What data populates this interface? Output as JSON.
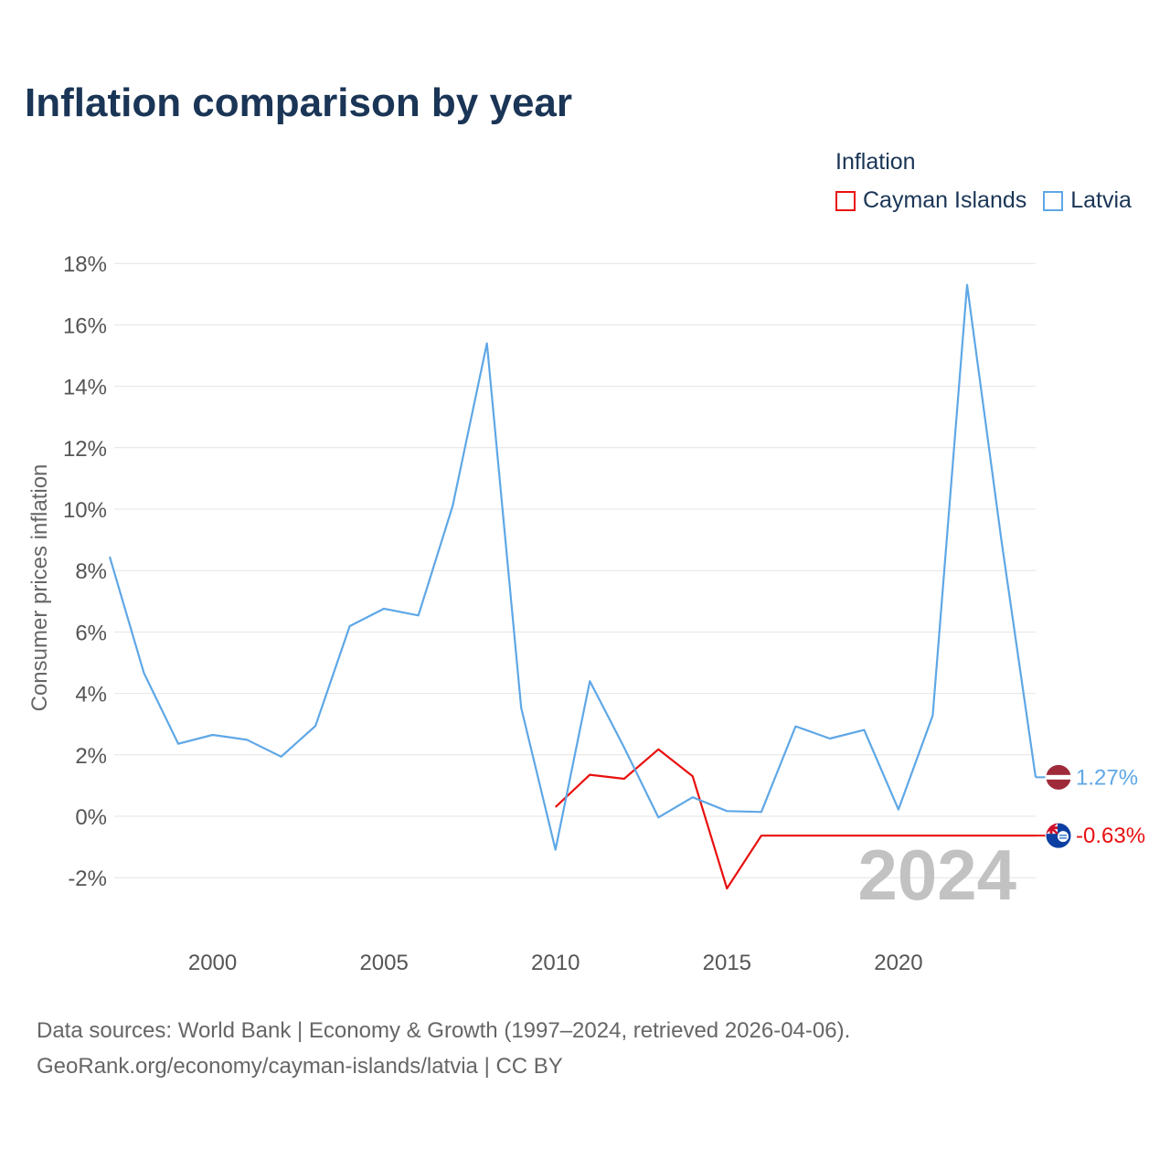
{
  "chart_data": {
    "type": "line",
    "title": "Inflation comparison by year",
    "legend_title": "Inflation",
    "ylabel": "Consumer prices inflation",
    "xlabel": "",
    "xlim": [
      1997,
      2024
    ],
    "ylim": [
      -3,
      18.5
    ],
    "y_ticks": [
      -2,
      0,
      2,
      4,
      6,
      8,
      10,
      12,
      14,
      16,
      18
    ],
    "x_ticks": [
      2000,
      2005,
      2010,
      2015,
      2020
    ],
    "y_tick_labels": [
      "-2%",
      "0%",
      "2%",
      "4%",
      "6%",
      "8%",
      "10%",
      "12%",
      "14%",
      "16%",
      "18%"
    ],
    "x_tick_labels": [
      "2000",
      "2005",
      "2010",
      "2015",
      "2020"
    ],
    "year_label": "2024",
    "series": [
      {
        "name": "Cayman Islands",
        "color": "#e8100f",
        "end_label": "-0.63%",
        "flag": "cayman-islands-flag-icon",
        "x": [
          2010,
          2011,
          2012,
          2013,
          2014,
          2015,
          2016,
          2017,
          2018,
          2019,
          2020,
          2021,
          2022,
          2023,
          2024
        ],
        "values": [
          0.3,
          1.35,
          1.22,
          2.18,
          1.3,
          -2.35,
          -0.63,
          -0.63,
          -0.63,
          -0.63,
          -0.63,
          -0.63,
          -0.63,
          -0.63,
          -0.63
        ]
      },
      {
        "name": "Latvia",
        "color": "#5ea7e6",
        "end_label": "1.27%",
        "flag": "latvia-flag-icon",
        "x": [
          1997,
          1998,
          1999,
          2000,
          2001,
          2002,
          2003,
          2004,
          2005,
          2006,
          2007,
          2008,
          2009,
          2010,
          2011,
          2012,
          2013,
          2014,
          2015,
          2016,
          2017,
          2018,
          2019,
          2020,
          2021,
          2022,
          2023,
          2024
        ],
        "values": [
          8.45,
          4.66,
          2.36,
          2.65,
          2.49,
          1.94,
          2.94,
          6.19,
          6.76,
          6.54,
          10.1,
          15.4,
          3.53,
          -1.09,
          4.4,
          2.24,
          -0.04,
          0.62,
          0.17,
          0.14,
          2.93,
          2.53,
          2.81,
          0.22,
          3.28,
          17.3,
          9.0,
          1.27
        ]
      }
    ]
  },
  "footer": {
    "line1": "Data sources: World Bank | Economy & Growth (1997–2024, retrieved 2026-04-06).",
    "line2": "GeoRank.org/economy/cayman-islands/latvia | CC BY"
  }
}
